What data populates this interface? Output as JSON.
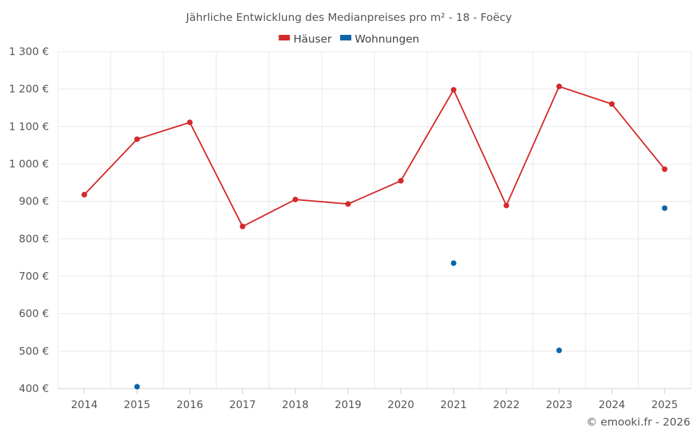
{
  "chart_data": {
    "type": "line",
    "title": "Jährliche Entwicklung des Medianpreises pro m² - 18 - Foëcy",
    "categories": [
      "2014",
      "2015",
      "2016",
      "2017",
      "2018",
      "2019",
      "2020",
      "2021",
      "2022",
      "2023",
      "2024",
      "2025"
    ],
    "series": [
      {
        "name": "Häuser",
        "color": "#d42a2a",
        "values": [
          918,
          1066,
          1111,
          833,
          905,
          893,
          955,
          1198,
          889,
          1207,
          1160,
          986
        ]
      },
      {
        "name": "Wohnungen",
        "color": "#0a66a8",
        "values": [
          null,
          405,
          null,
          null,
          null,
          null,
          null,
          735,
          null,
          502,
          null,
          882
        ]
      }
    ],
    "ylim": [
      400,
      1300
    ],
    "y_ticks": [
      400,
      500,
      600,
      700,
      800,
      900,
      1000,
      1100,
      1200,
      1300
    ],
    "y_tick_labels": [
      "400 €",
      "500 €",
      "600 €",
      "700 €",
      "800 €",
      "900 €",
      "1 000 €",
      "1 100 €",
      "1 200 €",
      "1 300 €"
    ],
    "grid": true,
    "legend_position": "top-center",
    "credit": "© emooki.fr - 2026"
  }
}
